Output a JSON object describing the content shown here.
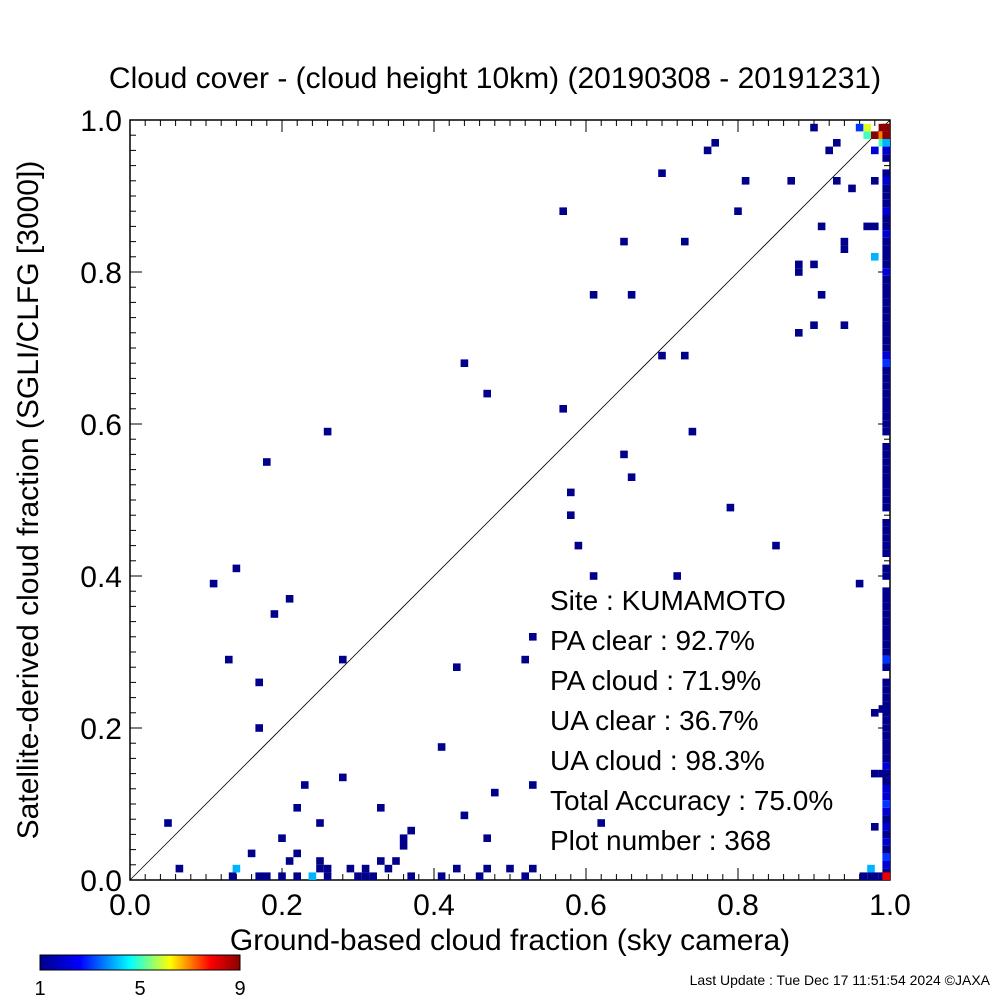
{
  "chart_data": {
    "type": "heatmap",
    "title": "Cloud cover - (cloud height 10km)  (20190308 - 20191231)",
    "xlabel": "Ground-based cloud fraction (sky camera)",
    "ylabel": "Satellite-derived cloud fraction (SGLI/CLFG [3000])",
    "xlim": [
      0.0,
      1.0
    ],
    "ylim": [
      0.0,
      1.0
    ],
    "xticks": [
      "0.0",
      "0.2",
      "0.4",
      "0.6",
      "0.8",
      "1.0"
    ],
    "yticks": [
      "0.0",
      "0.2",
      "0.4",
      "0.6",
      "0.8",
      "1.0"
    ],
    "reference_line": "y = x",
    "colorbar": {
      "min": 1,
      "max": 9,
      "ticks": [
        "1",
        "5",
        "9"
      ],
      "colors": [
        "#00008b",
        "#0000ff",
        "#00ffff",
        "#ffff00",
        "#ff0000",
        "#8b0000"
      ]
    },
    "stats": [
      {
        "label": "Site : KUMAMOTO"
      },
      {
        "label": "PA clear :  92.7%"
      },
      {
        "label": "PA cloud :  71.9%"
      },
      {
        "label": "UA clear :  36.7%"
      },
      {
        "label": "UA cloud :  98.3%"
      },
      {
        "label": "Total Accuracy :  75.0%"
      },
      {
        "label": "Plot number :       368"
      }
    ],
    "points": [
      [
        0.05,
        0.075,
        1
      ],
      [
        0.065,
        0.015,
        1
      ],
      [
        0.11,
        0.39,
        1
      ],
      [
        0.13,
        0.29,
        1
      ],
      [
        0.135,
        0.005,
        1
      ],
      [
        0.14,
        0.41,
        1
      ],
      [
        0.14,
        0.015,
        4
      ],
      [
        0.16,
        0.035,
        1
      ],
      [
        0.17,
        0.26,
        1
      ],
      [
        0.17,
        0.2,
        1
      ],
      [
        0.17,
        0.005,
        1
      ],
      [
        0.18,
        0.55,
        1
      ],
      [
        0.18,
        0.005,
        1
      ],
      [
        0.19,
        0.35,
        1
      ],
      [
        0.2,
        0.055,
        1
      ],
      [
        0.2,
        0.005,
        1
      ],
      [
        0.21,
        0.37,
        1
      ],
      [
        0.21,
        0.025,
        1
      ],
      [
        0.22,
        0.095,
        1
      ],
      [
        0.22,
        0.035,
        1
      ],
      [
        0.22,
        0.005,
        1
      ],
      [
        0.23,
        0.125,
        1
      ],
      [
        0.24,
        0.005,
        4
      ],
      [
        0.25,
        0.075,
        1
      ],
      [
        0.25,
        0.025,
        1
      ],
      [
        0.25,
        0.015,
        1
      ],
      [
        0.26,
        0.59,
        1
      ],
      [
        0.26,
        0.015,
        1
      ],
      [
        0.26,
        0.005,
        1
      ],
      [
        0.28,
        0.29,
        1
      ],
      [
        0.28,
        0.135,
        1
      ],
      [
        0.29,
        0.015,
        1
      ],
      [
        0.3,
        0.005,
        1
      ],
      [
        0.31,
        0.015,
        1
      ],
      [
        0.31,
        0.005,
        1
      ],
      [
        0.32,
        0.005,
        1
      ],
      [
        0.33,
        0.095,
        1
      ],
      [
        0.33,
        0.025,
        1
      ],
      [
        0.34,
        0.015,
        1
      ],
      [
        0.35,
        0.025,
        1
      ],
      [
        0.36,
        0.055,
        1
      ],
      [
        0.36,
        0.045,
        1
      ],
      [
        0.37,
        0.065,
        1
      ],
      [
        0.37,
        0.005,
        1
      ],
      [
        0.41,
        0.175,
        1
      ],
      [
        0.41,
        0.005,
        1
      ],
      [
        0.43,
        0.28,
        1
      ],
      [
        0.43,
        0.015,
        1
      ],
      [
        0.44,
        0.68,
        1
      ],
      [
        0.44,
        0.085,
        1
      ],
      [
        0.46,
        0.005,
        1
      ],
      [
        0.47,
        0.64,
        1
      ],
      [
        0.47,
        0.055,
        1
      ],
      [
        0.47,
        0.015,
        1
      ],
      [
        0.48,
        0.115,
        1
      ],
      [
        0.5,
        0.015,
        1
      ],
      [
        0.52,
        0.29,
        1
      ],
      [
        0.52,
        0.005,
        1
      ],
      [
        0.53,
        0.32,
        1
      ],
      [
        0.53,
        0.125,
        1
      ],
      [
        0.53,
        0.015,
        1
      ],
      [
        0.57,
        0.88,
        1
      ],
      [
        0.57,
        0.62,
        1
      ],
      [
        0.58,
        0.51,
        1
      ],
      [
        0.58,
        0.48,
        1
      ],
      [
        0.59,
        0.44,
        1
      ],
      [
        0.61,
        0.77,
        1
      ],
      [
        0.61,
        0.4,
        1
      ],
      [
        0.62,
        0.075,
        1
      ],
      [
        0.65,
        0.84,
        1
      ],
      [
        0.65,
        0.56,
        1
      ],
      [
        0.66,
        0.77,
        1
      ],
      [
        0.66,
        0.53,
        1
      ],
      [
        0.7,
        0.93,
        1
      ],
      [
        0.7,
        0.69,
        1
      ],
      [
        0.72,
        0.4,
        1
      ],
      [
        0.73,
        0.84,
        1
      ],
      [
        0.73,
        0.69,
        1
      ],
      [
        0.74,
        0.59,
        1
      ],
      [
        0.76,
        0.96,
        1
      ],
      [
        0.77,
        0.97,
        1
      ],
      [
        0.79,
        0.49,
        1
      ],
      [
        0.8,
        0.88,
        1
      ],
      [
        0.81,
        0.92,
        1
      ],
      [
        0.85,
        0.44,
        1
      ],
      [
        0.87,
        0.92,
        1
      ],
      [
        0.88,
        0.8,
        1
      ],
      [
        0.88,
        0.81,
        1
      ],
      [
        0.88,
        0.72,
        1
      ],
      [
        0.9,
        0.73,
        1
      ],
      [
        0.9,
        0.81,
        1
      ],
      [
        0.9,
        0.99,
        1
      ],
      [
        0.91,
        0.86,
        1
      ],
      [
        0.91,
        0.77,
        1
      ],
      [
        0.92,
        0.96,
        1
      ],
      [
        0.93,
        0.97,
        1
      ],
      [
        0.93,
        0.92,
        1
      ],
      [
        0.94,
        0.84,
        1
      ],
      [
        0.94,
        0.83,
        1
      ],
      [
        0.94,
        0.73,
        1
      ],
      [
        0.95,
        0.91,
        1
      ],
      [
        0.96,
        0.99,
        3
      ],
      [
        0.96,
        0.39,
        1
      ],
      [
        0.97,
        0.86,
        1
      ],
      [
        0.97,
        0.98,
        5
      ],
      [
        0.97,
        0.99,
        6
      ],
      [
        0.98,
        0.82,
        4
      ],
      [
        0.98,
        0.86,
        1
      ],
      [
        0.98,
        0.98,
        9
      ],
      [
        0.98,
        0.96,
        2
      ],
      [
        0.99,
        0.99,
        9
      ],
      [
        0.99,
        0.98,
        7
      ],
      [
        0.99,
        0.97,
        5
      ],
      [
        0.98,
        0.92,
        1
      ],
      [
        0.98,
        0.07,
        1
      ],
      [
        0.98,
        0.005,
        1
      ],
      [
        0.99,
        0.005,
        1
      ],
      [
        0.99,
        0.225,
        1
      ],
      [
        0.98,
        0.22,
        1
      ],
      [
        0.98,
        0.14,
        1
      ],
      [
        0.99,
        0.14,
        1
      ],
      [
        0.975,
        0.015,
        4
      ],
      [
        0.975,
        0.005,
        1
      ],
      [
        0.965,
        0.005,
        1
      ]
    ],
    "edge_column": {
      "x": 1.0,
      "y_values": [
        0.99,
        0.98,
        0.97,
        0.96,
        0.95,
        0.93,
        0.92,
        0.91,
        0.9,
        0.89,
        0.88,
        0.87,
        0.86,
        0.85,
        0.84,
        0.83,
        0.82,
        0.81,
        0.8,
        0.79,
        0.78,
        0.77,
        0.76,
        0.75,
        0.74,
        0.73,
        0.72,
        0.71,
        0.7,
        0.69,
        0.68,
        0.67,
        0.66,
        0.65,
        0.64,
        0.63,
        0.62,
        0.61,
        0.6,
        0.59,
        0.57,
        0.56,
        0.55,
        0.54,
        0.53,
        0.52,
        0.51,
        0.5,
        0.49,
        0.47,
        0.46,
        0.45,
        0.44,
        0.43,
        0.41,
        0.4,
        0.38,
        0.37,
        0.36,
        0.35,
        0.34,
        0.33,
        0.32,
        0.31,
        0.3,
        0.29,
        0.28,
        0.26,
        0.25,
        0.24,
        0.23,
        0.22,
        0.21,
        0.2,
        0.19,
        0.18,
        0.17,
        0.16,
        0.15,
        0.14,
        0.13,
        0.12,
        0.11,
        0.1,
        0.09,
        0.08,
        0.07,
        0.06,
        0.05,
        0.04,
        0.03,
        0.02,
        0.01,
        0.0
      ],
      "counts": [
        9,
        9,
        4,
        2,
        1,
        1,
        2,
        1,
        1,
        1,
        2,
        1,
        1,
        2,
        1,
        1,
        1,
        1,
        2,
        1,
        1,
        1,
        1,
        1,
        1,
        1,
        1,
        1,
        1,
        2,
        3,
        1,
        1,
        1,
        1,
        1,
        1,
        1,
        1,
        1,
        1,
        1,
        1,
        1,
        1,
        1,
        1,
        1,
        1,
        1,
        1,
        1,
        1,
        1,
        1,
        1,
        1,
        1,
        1,
        1,
        1,
        1,
        1,
        1,
        1,
        3,
        1,
        1,
        1,
        1,
        1,
        1,
        1,
        1,
        1,
        1,
        1,
        1,
        2,
        1,
        1,
        2,
        2,
        3,
        2,
        1,
        2,
        1,
        2,
        1,
        3,
        2,
        1,
        8
      ]
    }
  },
  "footer": {
    "last_update": "Last Update : Tue Dec 17 11:51:54 2024  ©JAXA"
  }
}
